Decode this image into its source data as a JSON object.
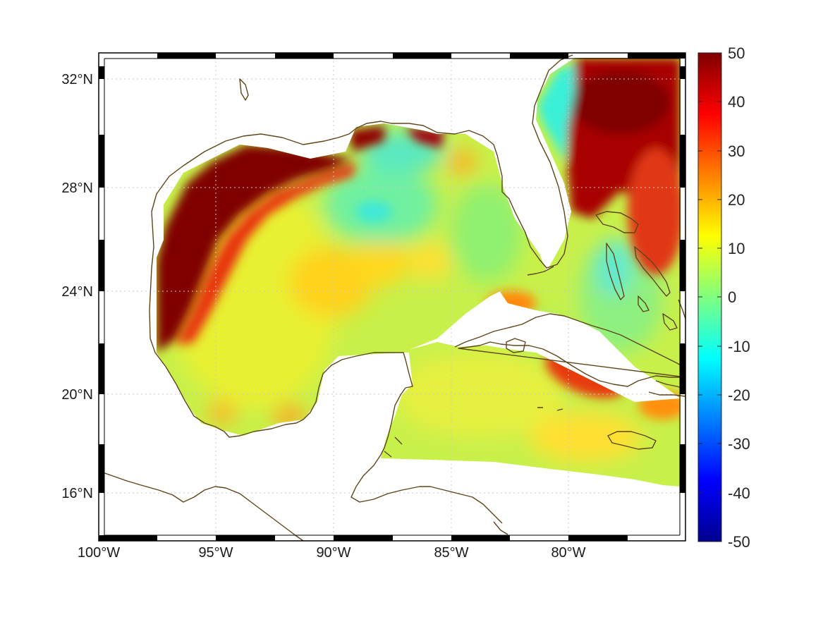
{
  "map": {
    "projection": "equirectangular",
    "lon_range": [
      -100,
      -75
    ],
    "lat_range": [
      14.2,
      33
    ],
    "x_ticks": [
      {
        "lon": -100,
        "label": "100°W"
      },
      {
        "lon": -95,
        "label": "95°W"
      },
      {
        "lon": -90,
        "label": "90°W"
      },
      {
        "lon": -85,
        "label": "85°W"
      },
      {
        "lon": -80,
        "label": "80°W"
      }
    ],
    "y_ticks": [
      {
        "lat": 32,
        "label": "32°N"
      },
      {
        "lat": 28,
        "label": "28°N"
      },
      {
        "lat": 24,
        "label": "24°N"
      },
      {
        "lat": 20,
        "label": "20°N"
      },
      {
        "lat": 16,
        "label": "16°N"
      }
    ],
    "grid": true,
    "grid_style": "dotted",
    "coastline_color": "#5e4519",
    "land_color": "#ffffff"
  },
  "colorbar": {
    "colormap": "jet",
    "range": [
      -50,
      50
    ],
    "ticks": [
      "50",
      "40",
      "30",
      "20",
      "10",
      "0",
      "-10",
      "-20",
      "-30",
      "-40",
      "-50"
    ]
  },
  "field_features": [
    {
      "name": "texas-shelf-high",
      "value": 55
    },
    {
      "name": "mississippi-delta-high",
      "value": 50
    },
    {
      "name": "gulf-stream-high",
      "value": 48
    },
    {
      "name": "carolina-shelf-low",
      "value": -5
    },
    {
      "name": "central-gulf-low",
      "value": -2
    },
    {
      "name": "cuba-south-high",
      "value": 32
    },
    {
      "name": "caribbean-background",
      "value": 8
    },
    {
      "name": "gulf-background",
      "value": 7
    }
  ]
}
